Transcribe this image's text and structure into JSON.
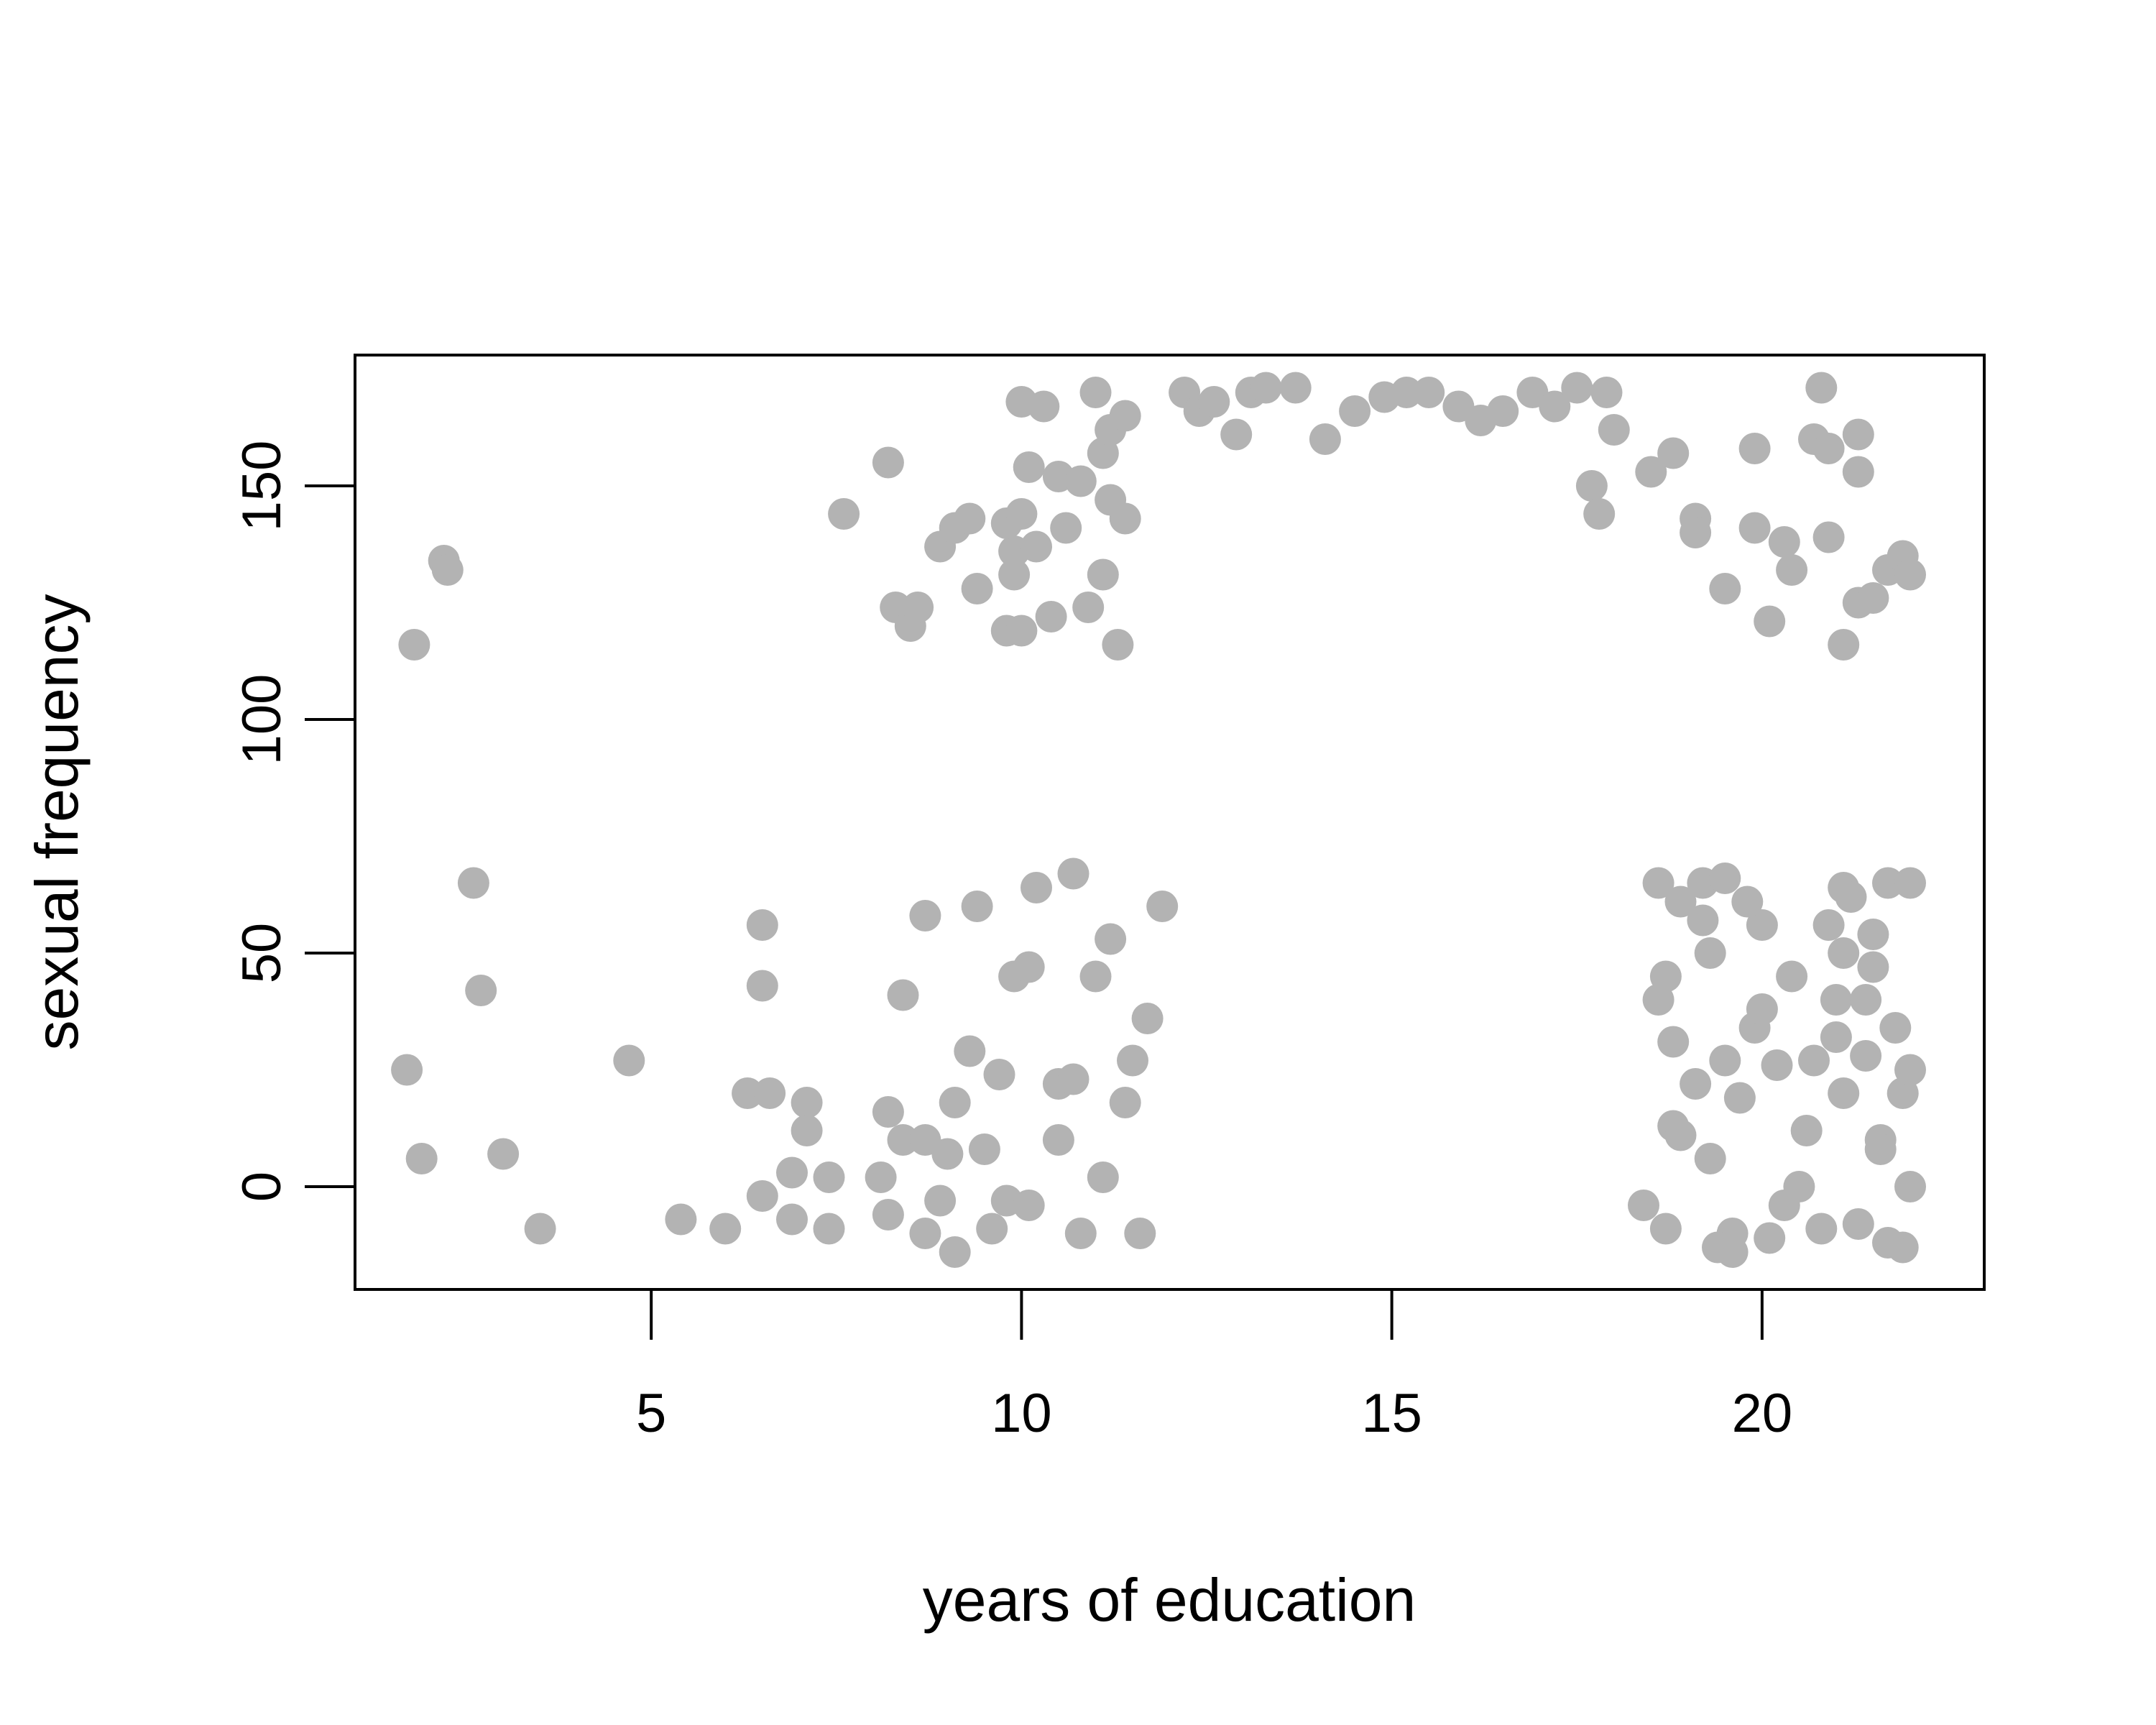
{
  "chart_data": {
    "type": "scatter",
    "title": "",
    "xlabel": "years of education",
    "ylabel": "sexual frequency",
    "xlim": [
      1,
      23
    ],
    "ylim": [
      -22,
      178
    ],
    "x_ticks": [
      5,
      10,
      15,
      20
    ],
    "y_ticks": [
      0,
      50,
      100,
      150
    ],
    "x_tick_labels": [
      "5",
      "10",
      "15",
      "20"
    ],
    "y_tick_labels": [
      "0",
      "50",
      "100",
      "150"
    ],
    "grid": false,
    "legend": "none",
    "point_color": "#b3b3b3",
    "series": [
      {
        "points": [
          [
            1.8,
            116
          ],
          [
            2.2,
            134
          ],
          [
            2.25,
            132
          ],
          [
            1.7,
            25
          ],
          [
            1.9,
            6
          ],
          [
            2.6,
            65
          ],
          [
            2.7,
            42
          ],
          [
            3.0,
            7
          ],
          [
            3.5,
            -9
          ],
          [
            4.7,
            27
          ],
          [
            5.4,
            -7
          ],
          [
            6.0,
            -9
          ],
          [
            6.3,
            20
          ],
          [
            6.5,
            43
          ],
          [
            6.5,
            56
          ],
          [
            6.6,
            20
          ],
          [
            6.5,
            -2
          ],
          [
            6.9,
            3
          ],
          [
            6.9,
            -7
          ],
          [
            7.1,
            18
          ],
          [
            7.1,
            12
          ],
          [
            7.4,
            2
          ],
          [
            7.4,
            -9
          ],
          [
            7.6,
            144
          ],
          [
            8.2,
            155
          ],
          [
            8.3,
            124
          ],
          [
            8.5,
            120
          ],
          [
            8.6,
            124
          ],
          [
            8.4,
            41
          ],
          [
            8.7,
            58
          ],
          [
            8.2,
            16
          ],
          [
            8.1,
            2
          ],
          [
            8.2,
            -6
          ],
          [
            8.4,
            10
          ],
          [
            8.7,
            10
          ],
          [
            8.7,
            -10
          ],
          [
            8.9,
            -3
          ],
          [
            9.0,
            7
          ],
          [
            9.1,
            18
          ],
          [
            9.1,
            -14
          ],
          [
            8.9,
            137
          ],
          [
            9.1,
            141
          ],
          [
            9.3,
            143
          ],
          [
            9.4,
            128
          ],
          [
            9.4,
            60
          ],
          [
            9.3,
            29
          ],
          [
            9.5,
            8
          ],
          [
            9.6,
            -9
          ],
          [
            9.8,
            -3
          ],
          [
            9.7,
            24
          ],
          [
            9.8,
            119
          ],
          [
            9.9,
            131
          ],
          [
            9.9,
            136
          ],
          [
            9.8,
            142
          ],
          [
            10.0,
            144
          ],
          [
            10.0,
            119
          ],
          [
            10.0,
            168
          ],
          [
            10.1,
            154
          ],
          [
            10.3,
            167
          ],
          [
            10.2,
            137
          ],
          [
            10.4,
            122
          ],
          [
            10.5,
            152
          ],
          [
            10.6,
            141
          ],
          [
            10.8,
            151
          ],
          [
            11.0,
            170
          ],
          [
            11.1,
            157
          ],
          [
            11.2,
            162
          ],
          [
            11.4,
            165
          ],
          [
            11.2,
            147
          ],
          [
            11.4,
            143
          ],
          [
            10.9,
            124
          ],
          [
            11.1,
            131
          ],
          [
            11.3,
            116
          ],
          [
            11.0,
            45
          ],
          [
            11.2,
            53
          ],
          [
            10.7,
            67
          ],
          [
            10.2,
            64
          ],
          [
            9.9,
            45
          ],
          [
            10.1,
            47
          ],
          [
            10.5,
            22
          ],
          [
            10.7,
            23
          ],
          [
            10.5,
            10
          ],
          [
            10.1,
            -4
          ],
          [
            10.8,
            -10
          ],
          [
            11.1,
            2
          ],
          [
            11.5,
            27
          ],
          [
            11.4,
            18
          ],
          [
            11.6,
            -10
          ],
          [
            11.9,
            60
          ],
          [
            11.7,
            36
          ],
          [
            12.2,
            170
          ],
          [
            12.4,
            166
          ],
          [
            12.6,
            168
          ],
          [
            12.9,
            161
          ],
          [
            13.1,
            170
          ],
          [
            13.3,
            171
          ],
          [
            13.7,
            171
          ],
          [
            14.1,
            160
          ],
          [
            14.5,
            166
          ],
          [
            14.9,
            169
          ],
          [
            15.2,
            170
          ],
          [
            15.5,
            170
          ],
          [
            15.9,
            167
          ],
          [
            16.2,
            164
          ],
          [
            16.5,
            166
          ],
          [
            16.9,
            170
          ],
          [
            17.2,
            167
          ],
          [
            17.5,
            171
          ],
          [
            17.9,
            170
          ],
          [
            18.0,
            162
          ],
          [
            17.7,
            150
          ],
          [
            17.8,
            144
          ],
          [
            18.5,
            153
          ],
          [
            18.8,
            157
          ],
          [
            19.1,
            143
          ],
          [
            19.1,
            140
          ],
          [
            19.5,
            128
          ],
          [
            19.9,
            141
          ],
          [
            19.9,
            158
          ],
          [
            20.1,
            121
          ],
          [
            20.3,
            138
          ],
          [
            20.4,
            132
          ],
          [
            20.8,
            171
          ],
          [
            20.7,
            160
          ],
          [
            20.9,
            158
          ],
          [
            20.9,
            139
          ],
          [
            21.1,
            116
          ],
          [
            21.3,
            125
          ],
          [
            21.5,
            126
          ],
          [
            21.3,
            161
          ],
          [
            21.3,
            153
          ],
          [
            21.7,
            132
          ],
          [
            21.9,
            135
          ],
          [
            22.0,
            131
          ],
          [
            18.8,
            13
          ],
          [
            18.6,
            40
          ],
          [
            18.8,
            31
          ],
          [
            19.1,
            22
          ],
          [
            19.3,
            50
          ],
          [
            19.5,
            27
          ],
          [
            19.6,
            -10
          ],
          [
            19.7,
            19
          ],
          [
            19.6,
            -14
          ],
          [
            19.4,
            -13
          ],
          [
            19.9,
            34
          ],
          [
            20.0,
            56
          ],
          [
            20.1,
            -11
          ],
          [
            20.2,
            26
          ],
          [
            20.6,
            12
          ],
          [
            20.9,
            56
          ],
          [
            21.0,
            40
          ],
          [
            20.8,
            -9
          ],
          [
            21.0,
            32
          ],
          [
            21.1,
            64
          ],
          [
            21.2,
            62
          ],
          [
            21.4,
            40
          ],
          [
            21.5,
            47
          ],
          [
            21.5,
            54
          ],
          [
            21.7,
            65
          ],
          [
            21.8,
            34
          ],
          [
            21.6,
            10
          ],
          [
            21.9,
            20
          ],
          [
            22.0,
            25
          ],
          [
            22.0,
            65
          ],
          [
            22.0,
            0
          ],
          [
            21.9,
            -13
          ],
          [
            21.7,
            -12
          ],
          [
            21.6,
            8
          ],
          [
            21.3,
            -8
          ],
          [
            21.1,
            20
          ],
          [
            18.6,
            65
          ],
          [
            18.9,
            61
          ],
          [
            19.2,
            65
          ],
          [
            19.5,
            66
          ],
          [
            19.8,
            61
          ],
          [
            19.2,
            57
          ],
          [
            18.7,
            45
          ],
          [
            18.9,
            11
          ],
          [
            18.7,
            -9
          ],
          [
            18.4,
            -4
          ],
          [
            19.3,
            6
          ],
          [
            20.4,
            45
          ],
          [
            20.7,
            27
          ],
          [
            20.5,
            0
          ],
          [
            20.3,
            -4
          ],
          [
            21.4,
            28
          ],
          [
            21.1,
            50
          ],
          [
            20.0,
            38
          ]
        ]
      }
    ]
  }
}
